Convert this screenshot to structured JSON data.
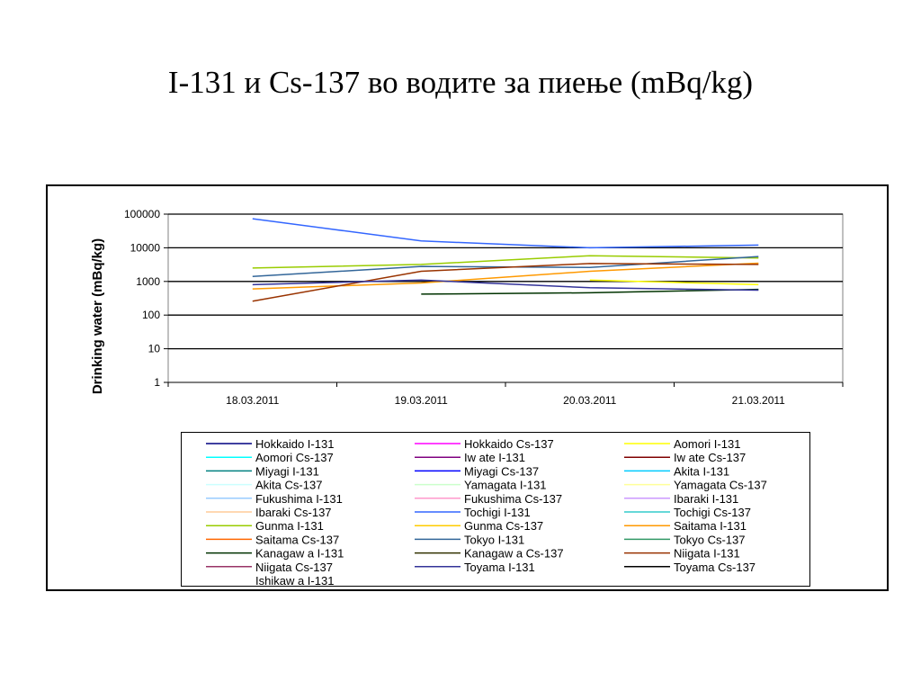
{
  "slide": {
    "title": "I-131 и Cs-137 во водите за пиење (mBq/kg)"
  },
  "chart_data": {
    "type": "line",
    "title": "",
    "xlabel": "",
    "ylabel": "Drinking water (mBq/kg)",
    "yscale": "log",
    "ylim": [
      1,
      100000
    ],
    "y_ticks": [
      "1",
      "10",
      "100",
      "1000",
      "10000",
      "100000"
    ],
    "grid": true,
    "legend_position": "bottom",
    "categories": [
      "18.03.2011",
      "19.03.2011",
      "20.03.2011",
      "21.03.2011"
    ],
    "series": [
      {
        "name": "Hokkaido I-131",
        "color": "#000080",
        "values": [
          null,
          null,
          null,
          null
        ]
      },
      {
        "name": "Hokkaido Cs-137",
        "color": "#ff00ff",
        "values": [
          null,
          null,
          null,
          null
        ]
      },
      {
        "name": "Aomori I-131",
        "color": "#ffff00",
        "values": [
          null,
          null,
          1100,
          800
        ]
      },
      {
        "name": "Aomori Cs-137",
        "color": "#00ffff",
        "values": [
          null,
          null,
          null,
          null
        ]
      },
      {
        "name": "Iw ate I-131",
        "color": "#800080",
        "values": [
          null,
          null,
          null,
          null
        ]
      },
      {
        "name": "Iw ate Cs-137",
        "color": "#800000",
        "values": [
          null,
          null,
          null,
          null
        ]
      },
      {
        "name": "Miyagi I-131",
        "color": "#008080",
        "values": [
          null,
          null,
          null,
          null
        ]
      },
      {
        "name": "Miyagi Cs-137",
        "color": "#0000ff",
        "values": [
          null,
          null,
          null,
          null
        ]
      },
      {
        "name": "Akita I-131",
        "color": "#00ccff",
        "values": [
          null,
          null,
          null,
          null
        ]
      },
      {
        "name": "Akita Cs-137",
        "color": "#ccffff",
        "values": [
          null,
          null,
          null,
          null
        ]
      },
      {
        "name": "Yamagata I-131",
        "color": "#ccffcc",
        "values": [
          null,
          null,
          null,
          null
        ]
      },
      {
        "name": "Yamagata Cs-137",
        "color": "#ffff99",
        "values": [
          null,
          null,
          null,
          null
        ]
      },
      {
        "name": "Fukushima I-131",
        "color": "#99ccff",
        "values": [
          null,
          null,
          null,
          null
        ]
      },
      {
        "name": "Fukushima Cs-137",
        "color": "#ff99cc",
        "values": [
          null,
          null,
          null,
          null
        ]
      },
      {
        "name": "Ibaraki I-131",
        "color": "#cc99ff",
        "values": [
          null,
          null,
          null,
          null
        ]
      },
      {
        "name": "Ibaraki Cs-137",
        "color": "#ffcc99",
        "values": [
          null,
          null,
          null,
          null
        ]
      },
      {
        "name": "Tochigi I-131",
        "color": "#3366ff",
        "values": [
          73000,
          16000,
          10000,
          12000
        ]
      },
      {
        "name": "Tochigi Cs-137",
        "color": "#33cccc",
        "values": [
          null,
          null,
          null,
          6000
        ]
      },
      {
        "name": "Gunma I-131",
        "color": "#99cc00",
        "values": [
          2500,
          3200,
          5800,
          5000
        ]
      },
      {
        "name": "Gunma Cs-137",
        "color": "#ffcc00",
        "values": [
          null,
          null,
          null,
          null
        ]
      },
      {
        "name": "Saitama I-131",
        "color": "#ff9900",
        "values": [
          600,
          900,
          2000,
          3500
        ]
      },
      {
        "name": "Saitama Cs-137",
        "color": "#ff6600",
        "values": [
          null,
          null,
          null,
          null
        ]
      },
      {
        "name": "Tokyo I-131",
        "color": "#336699",
        "values": [
          1400,
          2800,
          2600,
          5500
        ]
      },
      {
        "name": "Tokyo Cs-137",
        "color": "#339966",
        "values": [
          null,
          null,
          null,
          null
        ]
      },
      {
        "name": "Kanagaw a I-131",
        "color": "#003300",
        "values": [
          null,
          420,
          460,
          580
        ]
      },
      {
        "name": "Kanagaw a Cs-137",
        "color": "#333300",
        "values": [
          null,
          null,
          null,
          null
        ]
      },
      {
        "name": "Niigata I-131",
        "color": "#993300",
        "values": [
          260,
          2000,
          3400,
          3200
        ]
      },
      {
        "name": "Niigata  Cs-137",
        "color": "#993366",
        "values": [
          null,
          null,
          null,
          null
        ]
      },
      {
        "name": "Toyama I-131",
        "color": "#333399",
        "values": [
          800,
          1100,
          650,
          550
        ]
      },
      {
        "name": "Toyama Cs-137",
        "color": "#000000",
        "values": [
          null,
          null,
          null,
          null
        ]
      },
      {
        "name": "Ishikaw a I-131",
        "color": "#ffffff",
        "values": [
          null,
          null,
          null,
          null
        ]
      }
    ]
  }
}
